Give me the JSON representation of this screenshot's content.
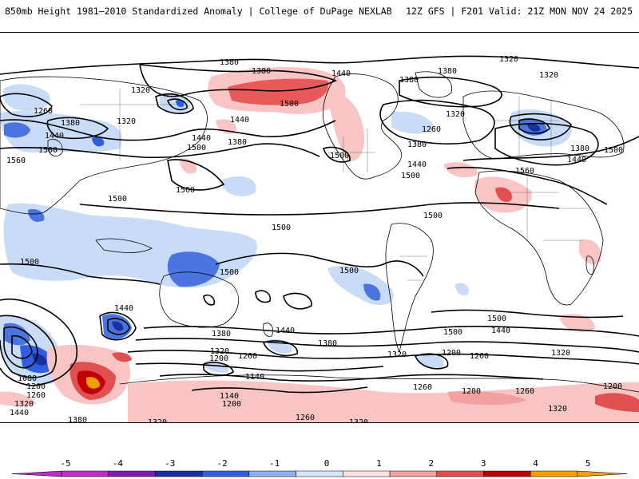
{
  "header": {
    "title": "850mb Height 1981–2010 Standardized Anomaly | College of DuPage NEXLAB",
    "run_info": "12Z GFS | F201 Valid: 21Z MON NOV 24 2025"
  },
  "map": {
    "contour_labels": [
      {
        "id": "l1380a",
        "text": "1380"
      },
      {
        "id": "l1380b",
        "text": "1380"
      },
      {
        "id": "l1320a",
        "text": "1320"
      },
      {
        "id": "l1440a",
        "text": "1440"
      },
      {
        "id": "l1380c",
        "text": "1380"
      },
      {
        "id": "l1380d",
        "text": "1380"
      },
      {
        "id": "l1320b",
        "text": "1320"
      },
      {
        "id": "l1320c",
        "text": "1320"
      },
      {
        "id": "l1260a",
        "text": "1260"
      },
      {
        "id": "l1500a",
        "text": "1500"
      },
      {
        "id": "l1320d",
        "text": "1320"
      },
      {
        "id": "l1380e",
        "text": "1380"
      },
      {
        "id": "l1320e",
        "text": "1320"
      },
      {
        "id": "l1440b",
        "text": "1440"
      },
      {
        "id": "l1440c",
        "text": "1440"
      },
      {
        "id": "l1500b",
        "text": "1500"
      },
      {
        "id": "l1440d",
        "text": "1440"
      },
      {
        "id": "l1380f",
        "text": "1380"
      },
      {
        "id": "l1500c",
        "text": "1500"
      },
      {
        "id": "l1560a",
        "text": "1560"
      },
      {
        "id": "l1260b",
        "text": "1260"
      },
      {
        "id": "l1380g",
        "text": "1380"
      },
      {
        "id": "l1500d",
        "text": "1500"
      },
      {
        "id": "l1440e",
        "text": "1440"
      },
      {
        "id": "l1500e",
        "text": "1500"
      },
      {
        "id": "l1380h",
        "text": "1380"
      },
      {
        "id": "l1440f",
        "text": "1440"
      },
      {
        "id": "l1500f",
        "text": "1500"
      },
      {
        "id": "l1560b",
        "text": "1560"
      },
      {
        "id": "l1560c",
        "text": "1560"
      },
      {
        "id": "l1500g",
        "text": "1500"
      },
      {
        "id": "l1500h",
        "text": "1500"
      },
      {
        "id": "l1500i",
        "text": "1500"
      },
      {
        "id": "l1500j",
        "text": "1500"
      },
      {
        "id": "l1500k",
        "text": "1500"
      },
      {
        "id": "l1500l",
        "text": "1500"
      },
      {
        "id": "l1440g",
        "text": "1440"
      },
      {
        "id": "l1500m",
        "text": "1500"
      },
      {
        "id": "l1440h",
        "text": "1440"
      },
      {
        "id": "l1380i",
        "text": "1380"
      },
      {
        "id": "l1500n",
        "text": "1500"
      },
      {
        "id": "l1440i",
        "text": "1440"
      },
      {
        "id": "l1380j",
        "text": "1380"
      },
      {
        "id": "l1320f",
        "text": "1320"
      },
      {
        "id": "l1260c",
        "text": "1260"
      },
      {
        "id": "l1200a",
        "text": "1200"
      },
      {
        "id": "l1140a",
        "text": "1140"
      },
      {
        "id": "l1320g",
        "text": "1320"
      },
      {
        "id": "l1200b",
        "text": "1200"
      },
      {
        "id": "l1260d",
        "text": "1260"
      },
      {
        "id": "l1320h",
        "text": "1320"
      },
      {
        "id": "l1080a",
        "text": "1080"
      },
      {
        "id": "l1200c",
        "text": "1200"
      },
      {
        "id": "l1260e",
        "text": "1260"
      },
      {
        "id": "l1320i",
        "text": "1320"
      },
      {
        "id": "l1440j",
        "text": "1440"
      },
      {
        "id": "l1380k",
        "text": "1380"
      },
      {
        "id": "l1140b",
        "text": "1140"
      },
      {
        "id": "l1200d",
        "text": "1200"
      },
      {
        "id": "l1260f",
        "text": "1260"
      },
      {
        "id": "l1320j",
        "text": "1320"
      },
      {
        "id": "l1200e",
        "text": "1200"
      },
      {
        "id": "l1260g",
        "text": "1260"
      },
      {
        "id": "l1260h",
        "text": "1260"
      },
      {
        "id": "l1200f",
        "text": "1200"
      },
      {
        "id": "l1320k",
        "text": "1320"
      },
      {
        "id": "l1320l",
        "text": "1320"
      }
    ]
  },
  "colorbar": {
    "ticks": [
      "-5",
      "-4",
      "-3",
      "-2",
      "-1",
      "0",
      "1",
      "2",
      "3",
      "4",
      "5"
    ],
    "colors": [
      "#c02ec0",
      "#7a1fb0",
      "#1a2fa0",
      "#2f5fe0",
      "#8fb0f0",
      "#d4e4fa",
      "#fde0e0",
      "#f3a0a0",
      "#e05050",
      "#c00000",
      "#f0a000"
    ]
  }
}
